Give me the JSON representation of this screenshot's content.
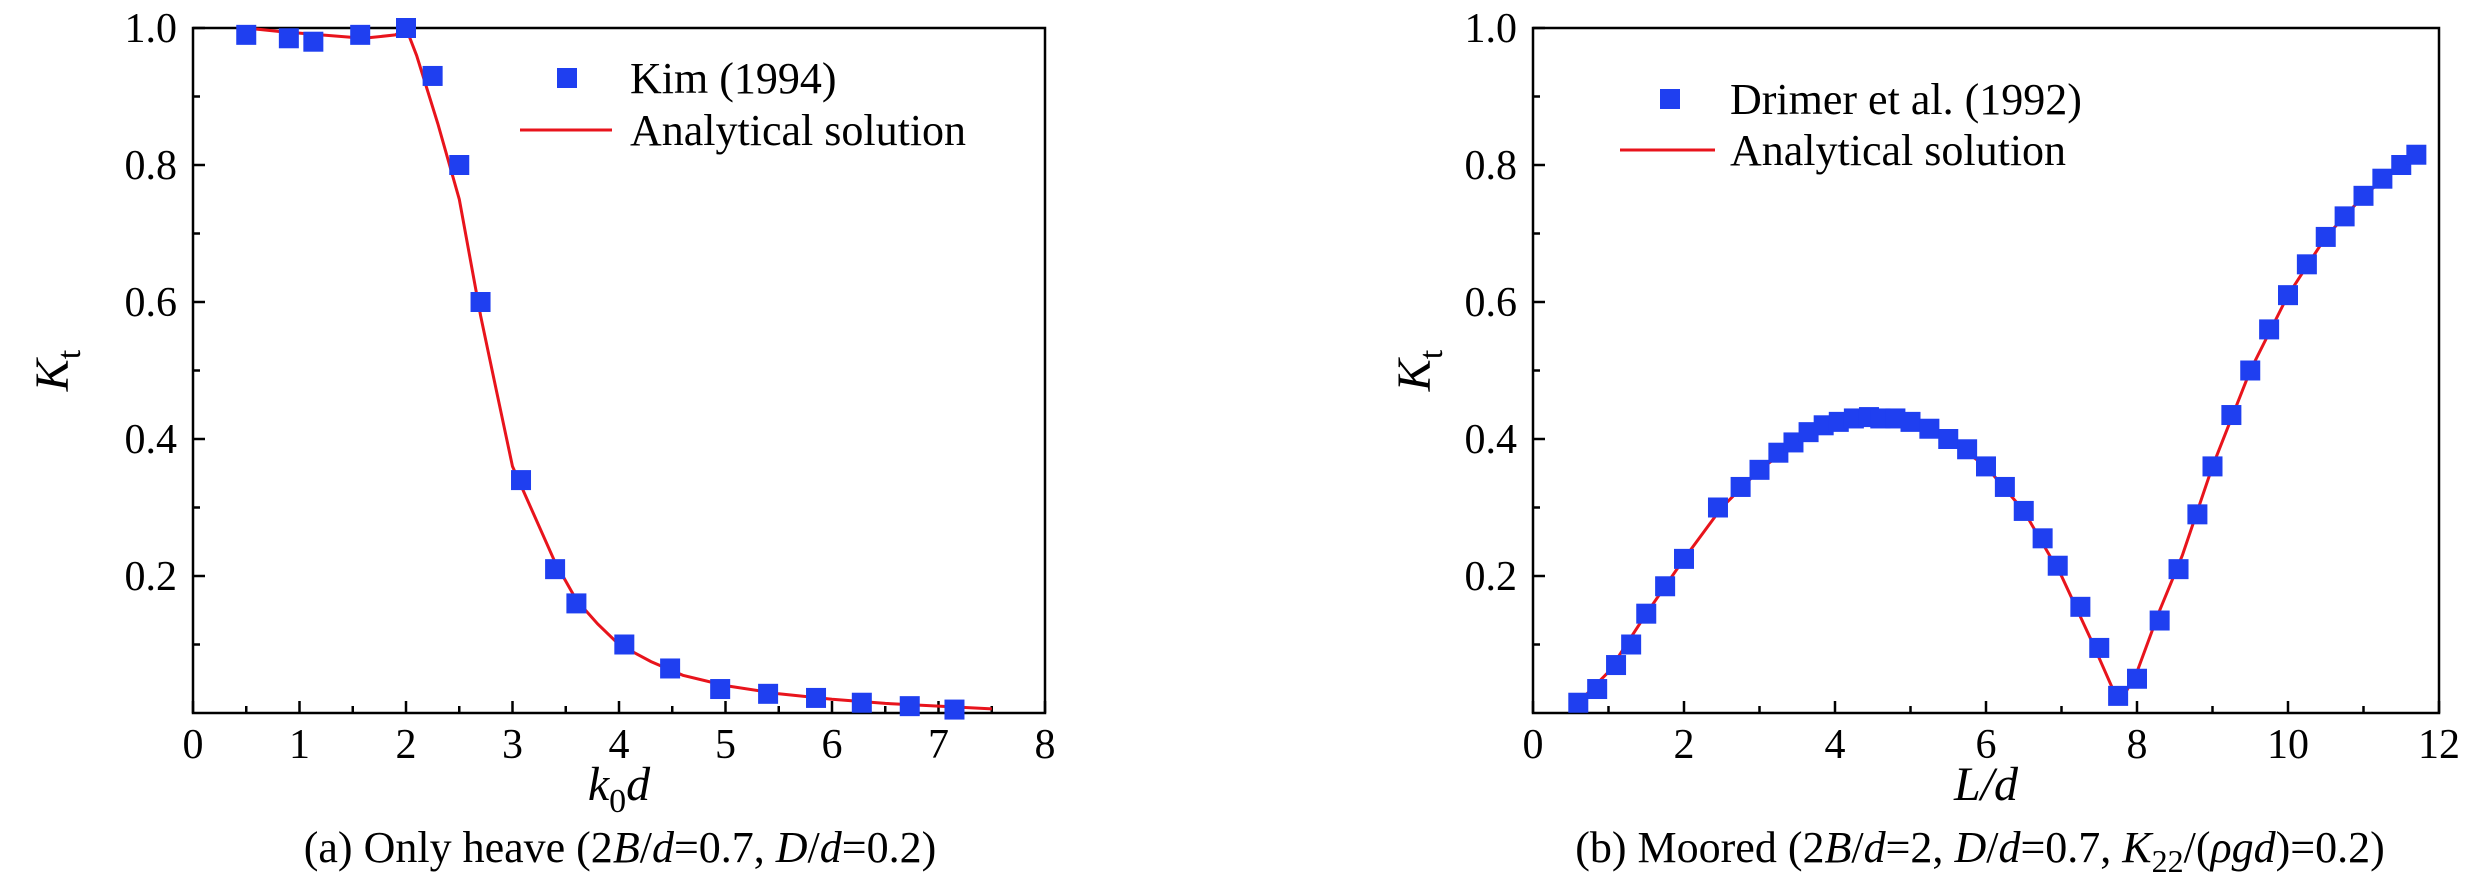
{
  "chart_data": [
    {
      "type": "scatter",
      "caption": {
        "prefix": "(a) Only heave (2",
        "parts": [
          {
            "t": "B",
            "i": true
          },
          {
            "t": "/",
            "i": false
          },
          {
            "t": "d",
            "i": true
          },
          {
            "t": "=0.7, ",
            "i": false
          },
          {
            "t": "D",
            "i": true
          },
          {
            "t": "/",
            "i": false
          },
          {
            "t": "d",
            "i": true
          },
          {
            "t": "=0.2)",
            "i": false
          }
        ]
      },
      "xlabel": {
        "main": "k",
        "sub": "0",
        "tail": "d"
      },
      "ylabel": {
        "main": "K",
        "sub": "t"
      },
      "xlim": [
        0,
        8
      ],
      "ylim": [
        0,
        1.0
      ],
      "xticks": [
        "0",
        "1",
        "2",
        "3",
        "4",
        "5",
        "6",
        "7",
        "8"
      ],
      "yticks": [
        "0.2",
        "0.4",
        "0.6",
        "0.8",
        "1.0"
      ],
      "legend": {
        "position": "top-right",
        "marker_label": "Kim (1994)",
        "line_label": "Analytical solution"
      },
      "series": [
        {
          "name": "Kim (1994)",
          "kind": "markers",
          "x": [
            0.5,
            0.9,
            1.13,
            1.57,
            2.0,
            2.25,
            2.5,
            2.7,
            3.08,
            3.4,
            3.6,
            4.05,
            4.48,
            4.95,
            5.4,
            5.85,
            6.28,
            6.73,
            7.15
          ],
          "y": [
            0.99,
            0.985,
            0.98,
            0.99,
            1.0,
            0.93,
            0.8,
            0.6,
            0.34,
            0.21,
            0.16,
            0.1,
            0.065,
            0.035,
            0.028,
            0.022,
            0.015,
            0.01,
            0.005
          ]
        },
        {
          "name": "Analytical solution",
          "kind": "line",
          "x": [
            0.5,
            0.8,
            1.2,
            1.6,
            1.9,
            2.0,
            2.1,
            2.3,
            2.5,
            2.7,
            2.85,
            3.0,
            3.2,
            3.4,
            3.6,
            3.8,
            4.0,
            4.3,
            4.6,
            5.0,
            5.5,
            6.0,
            6.5,
            7.0,
            7.5
          ],
          "y": [
            1.0,
            0.995,
            0.99,
            0.985,
            0.99,
            1.0,
            0.96,
            0.86,
            0.75,
            0.58,
            0.47,
            0.36,
            0.29,
            0.22,
            0.165,
            0.13,
            0.1,
            0.075,
            0.055,
            0.04,
            0.028,
            0.02,
            0.014,
            0.01,
            0.006
          ]
        }
      ],
      "colors": {
        "markers": "#1f3ff0",
        "line": "#e8141c"
      }
    },
    {
      "type": "scatter",
      "caption": {
        "prefix": "(b) Moored (2",
        "parts": [
          {
            "t": "B",
            "i": true
          },
          {
            "t": "/",
            "i": false
          },
          {
            "t": "d",
            "i": true
          },
          {
            "t": "=2, ",
            "i": false
          },
          {
            "t": "D",
            "i": true
          },
          {
            "t": "/",
            "i": false
          },
          {
            "t": "d",
            "i": true
          },
          {
            "t": "=0.7, ",
            "i": false
          },
          {
            "t": "K",
            "i": true
          },
          {
            "t": "22",
            "i": false,
            "sub": true
          },
          {
            "t": "/(",
            "i": false
          },
          {
            "t": "ρgd",
            "i": true
          },
          {
            "t": ")=0.2)",
            "i": false
          }
        ]
      },
      "xlabel": {
        "main": "L",
        "sub": "",
        "tail": "/d"
      },
      "ylabel": {
        "main": "K",
        "sub": "t"
      },
      "xlim": [
        0,
        12
      ],
      "ylim": [
        0,
        1.0
      ],
      "xticks": [
        "0",
        "2",
        "4",
        "6",
        "8",
        "10",
        "12"
      ],
      "yticks": [
        "0.2",
        "0.4",
        "0.6",
        "0.8",
        "1.0"
      ],
      "legend": {
        "position": "top-left",
        "marker_label": "Drimer et al. (1992)",
        "line_label": "Analytical solution"
      },
      "series": [
        {
          "name": "Drimer et al. (1992)",
          "kind": "markers",
          "x": [
            0.6,
            0.85,
            1.1,
            1.3,
            1.5,
            1.75,
            2.0,
            2.45,
            2.75,
            3.0,
            3.25,
            3.45,
            3.65,
            3.85,
            4.05,
            4.25,
            4.45,
            4.6,
            4.8,
            5.0,
            5.25,
            5.5,
            5.75,
            6.0,
            6.25,
            6.5,
            6.75,
            6.95,
            7.25,
            7.5,
            7.75,
            8.0,
            8.3,
            8.55,
            8.8,
            9.0,
            9.25,
            9.5,
            9.75,
            10.0,
            10.25,
            10.5,
            10.75,
            11.0,
            11.25,
            11.5,
            11.7
          ],
          "y": [
            0.015,
            0.035,
            0.07,
            0.1,
            0.145,
            0.185,
            0.225,
            0.3,
            0.33,
            0.355,
            0.38,
            0.395,
            0.41,
            0.42,
            0.425,
            0.43,
            0.432,
            0.43,
            0.43,
            0.425,
            0.415,
            0.4,
            0.385,
            0.36,
            0.33,
            0.295,
            0.255,
            0.215,
            0.155,
            0.095,
            0.025,
            0.05,
            0.135,
            0.21,
            0.29,
            0.36,
            0.435,
            0.5,
            0.56,
            0.61,
            0.655,
            0.695,
            0.725,
            0.755,
            0.78,
            0.8,
            0.815
          ]
        },
        {
          "name": "Analytical solution",
          "kind": "line",
          "x": [
            0.6,
            1.0,
            1.5,
            2.0,
            2.5,
            3.0,
            3.5,
            4.0,
            4.5,
            5.0,
            5.5,
            6.0,
            6.5,
            7.0,
            7.4,
            7.7,
            7.8,
            8.0,
            8.3,
            8.6,
            9.0,
            9.5,
            10.0,
            10.5,
            11.0,
            11.5,
            11.8
          ],
          "y": [
            0.015,
            0.06,
            0.145,
            0.225,
            0.3,
            0.355,
            0.395,
            0.42,
            0.43,
            0.42,
            0.4,
            0.36,
            0.295,
            0.2,
            0.105,
            0.03,
            0.02,
            0.06,
            0.15,
            0.23,
            0.36,
            0.5,
            0.61,
            0.695,
            0.755,
            0.8,
            0.82
          ]
        }
      ],
      "colors": {
        "markers": "#1f3ff0",
        "line": "#e8141c"
      }
    }
  ]
}
